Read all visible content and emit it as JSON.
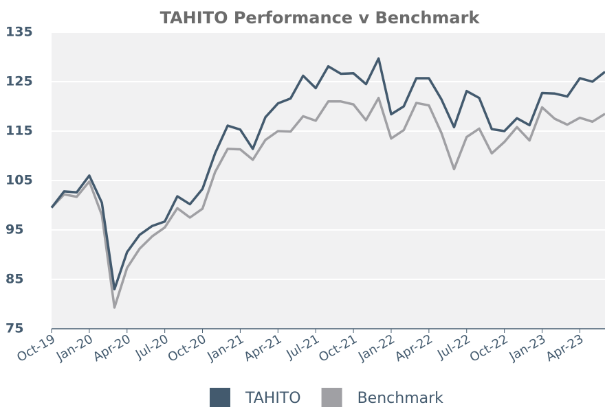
{
  "chart_data": {
    "type": "line",
    "title": "TAHITO Performance v Benchmark",
    "categories": [
      "Oct-19",
      null,
      null,
      "Jan-20",
      null,
      null,
      "Apr-20",
      null,
      null,
      "Jul-20",
      null,
      null,
      "Oct-20",
      null,
      null,
      "Jan-21",
      null,
      null,
      "Apr-21",
      null,
      null,
      "Jul-21",
      null,
      null,
      "Oct-21",
      null,
      null,
      "Jan-22",
      null,
      null,
      "Apr-22",
      null,
      null,
      "Jul-22",
      null,
      null,
      "Oct-22",
      null,
      null,
      "Jan-23",
      null,
      null,
      "Apr-23",
      null,
      null
    ],
    "series": [
      {
        "name": "TAHITO",
        "color": "#435a6e",
        "values": [
          99.5,
          102.8,
          102.6,
          106,
          100.5,
          83,
          90.5,
          94,
          95.8,
          96.7,
          101.8,
          100.2,
          103.3,
          110.5,
          116.1,
          115.3,
          111.4,
          117.8,
          120.6,
          121.6,
          126.2,
          123.7,
          128.1,
          126.6,
          126.7,
          124.5,
          129.7,
          118.4,
          120,
          125.7,
          125.7,
          121.4,
          115.8,
          123.1,
          121.7,
          115.4,
          115,
          117.6,
          116.2,
          122.7,
          122.6,
          122,
          125.7,
          125,
          127
        ]
      },
      {
        "name": "Benchmark",
        "color": "#a0a0a4",
        "values": [
          99.5,
          102.2,
          101.7,
          104.8,
          98,
          79.3,
          87.3,
          91.2,
          93.7,
          95.5,
          99.4,
          97.5,
          99.3,
          106.7,
          111.4,
          111.3,
          109.2,
          113.2,
          115,
          114.9,
          118,
          117.1,
          121,
          121,
          120.4,
          117.2,
          121.7,
          113.5,
          115.2,
          120.7,
          120.2,
          114.6,
          107.3,
          113.8,
          115.5,
          110.5,
          112.8,
          115.8,
          113.1,
          119.8,
          117.5,
          116.3,
          117.7,
          116.9,
          118.5
        ]
      }
    ],
    "ylim": [
      75,
      135
    ],
    "yticks": [
      75,
      85,
      95,
      105,
      115,
      125,
      135
    ],
    "grid": true,
    "legend": "bottom"
  }
}
